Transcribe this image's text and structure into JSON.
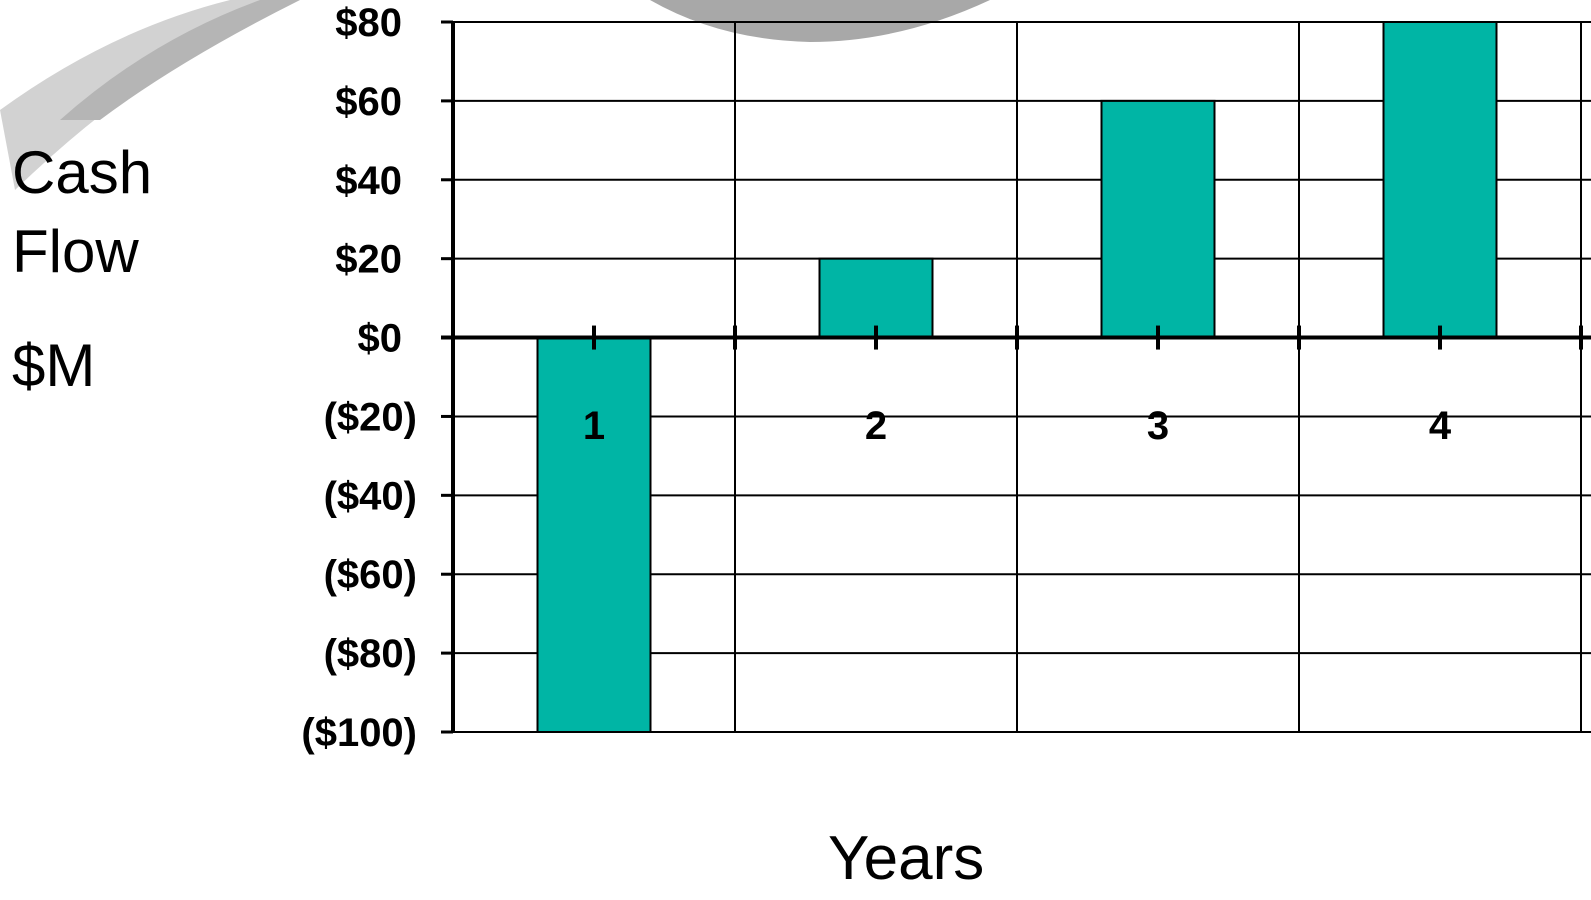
{
  "chart_data": {
    "type": "bar",
    "categories": [
      "1",
      "2",
      "3",
      "4"
    ],
    "values": [
      -100,
      20,
      60,
      80
    ],
    "ylabel_lines": [
      "Cash",
      "Flow",
      "$M"
    ],
    "xlabel": "Years",
    "ylim": [
      -100,
      80
    ],
    "yticks": [
      80,
      60,
      40,
      20,
      0,
      -20,
      -40,
      -60,
      -80,
      -100
    ],
    "ytick_labels": [
      "$80",
      "$60",
      "$40",
      "$20",
      "$0",
      "($20)",
      "($40)",
      "($60)",
      "($80)",
      "($100)"
    ],
    "grid": true,
    "bar_color": "#00B5A5"
  }
}
